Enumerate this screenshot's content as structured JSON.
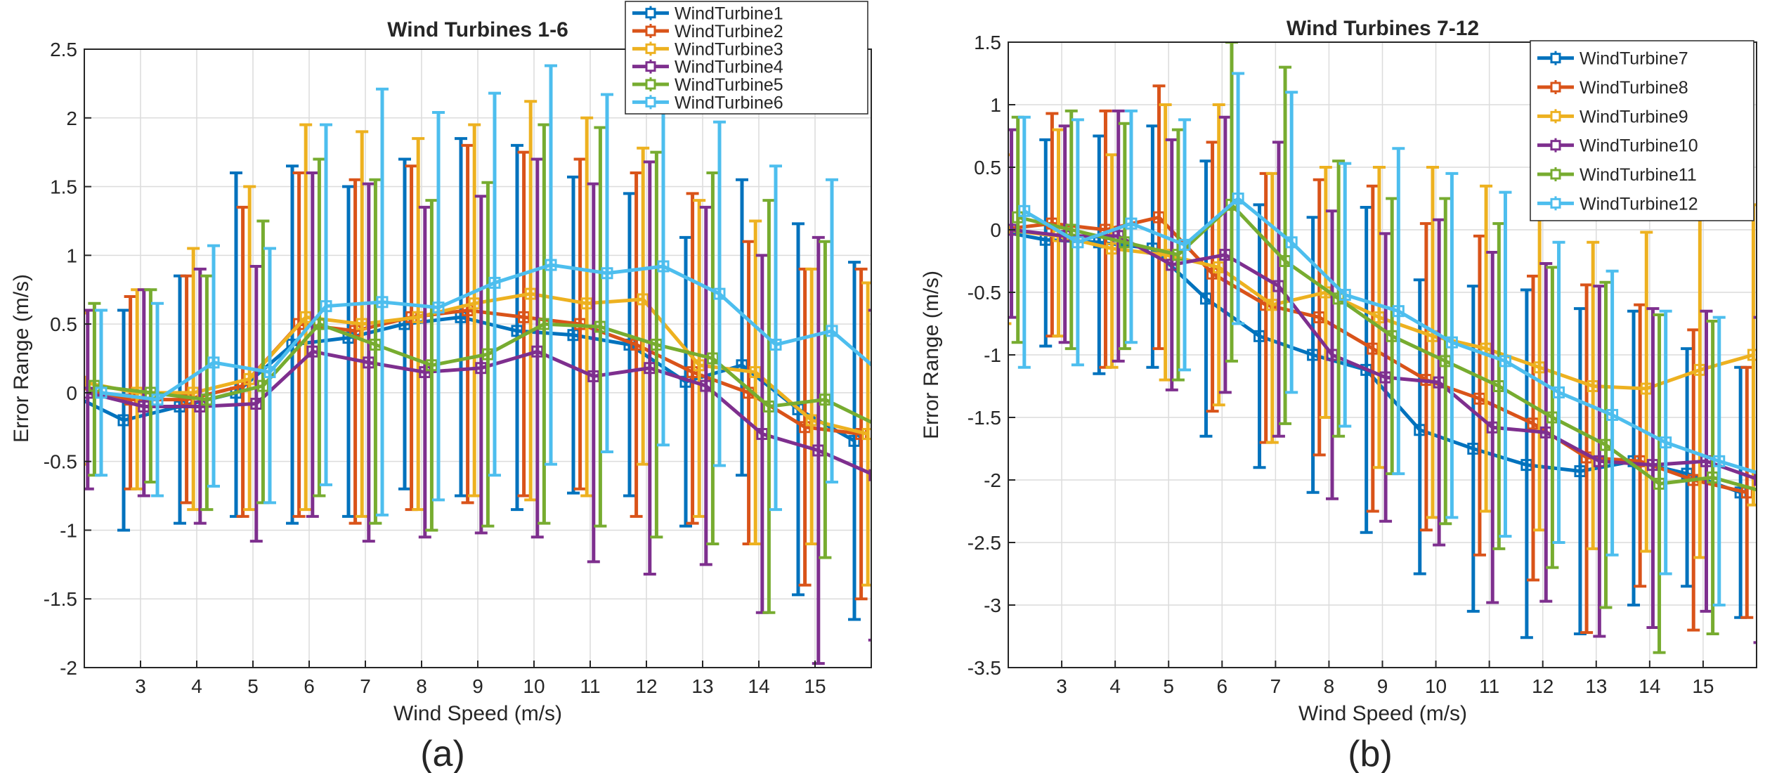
{
  "figure": {
    "colors": [
      "#0072BD",
      "#D95319",
      "#EDB120",
      "#7E2F8E",
      "#77AC30",
      "#4DBEEE"
    ]
  },
  "chart_data": [
    {
      "type": "line",
      "panel_label": "(a)",
      "title": "Wind Turbines 1-6",
      "xlabel": "Wind Speed (m/s)",
      "ylabel": "Error Range (m/s)",
      "xlim": [
        2,
        16
      ],
      "ylim": [
        -2,
        2.5
      ],
      "xticks": [
        3,
        4,
        5,
        6,
        7,
        8,
        9,
        10,
        11,
        12,
        13,
        14,
        15
      ],
      "yticks": [
        -2,
        -1.5,
        -1,
        -0.5,
        0,
        0.5,
        1,
        1.5,
        2,
        2.5
      ],
      "grid": true,
      "legend_position": "top-right",
      "x": [
        2,
        3,
        4,
        5,
        6,
        7,
        8,
        9,
        10,
        11,
        12,
        13,
        14,
        15,
        16
      ],
      "series": [
        {
          "name": "WindTurbine1",
          "offset": -0.3,
          "values": [
            0.0,
            -0.2,
            -0.1,
            0.0,
            0.35,
            0.4,
            0.5,
            0.55,
            0.45,
            0.42,
            0.35,
            0.08,
            0.2,
            -0.12,
            -0.35
          ],
          "err_low": [
            0.55,
            0.8,
            0.85,
            0.9,
            1.3,
            1.3,
            1.2,
            1.3,
            1.3,
            1.15,
            1.1,
            1.05,
            0.8,
            1.35,
            1.3
          ],
          "err_high": [
            0.45,
            0.8,
            0.95,
            1.6,
            1.3,
            1.1,
            1.2,
            1.3,
            1.35,
            1.15,
            1.1,
            1.05,
            1.35,
            1.35,
            1.3
          ]
        },
        {
          "name": "WindTurbine2",
          "offset": -0.18,
          "values": [
            0.05,
            -0.05,
            -0.05,
            0.05,
            0.5,
            0.45,
            0.55,
            0.6,
            0.55,
            0.5,
            0.35,
            0.15,
            0.0,
            -0.25,
            -0.3
          ],
          "err_low": [
            0.7,
            0.65,
            0.75,
            0.95,
            1.4,
            1.4,
            1.4,
            1.4,
            1.3,
            1.2,
            1.25,
            1.1,
            1.1,
            1.15,
            1.2
          ],
          "err_high": [
            0.5,
            0.75,
            0.9,
            1.3,
            1.1,
            1.1,
            1.1,
            1.2,
            1.2,
            1.2,
            1.25,
            1.3,
            1.1,
            1.15,
            1.2
          ]
        },
        {
          "name": "WindTurbine3",
          "offset": -0.06,
          "values": [
            0.08,
            0.0,
            0.0,
            0.1,
            0.55,
            0.5,
            0.55,
            0.65,
            0.72,
            0.65,
            0.68,
            0.2,
            0.15,
            -0.2,
            -0.3
          ],
          "err_low": [
            0.6,
            0.7,
            0.85,
            0.95,
            1.4,
            1.4,
            1.4,
            1.4,
            1.5,
            1.4,
            1.2,
            1.1,
            1.25,
            0.9,
            1.1
          ],
          "err_high": [
            0.5,
            0.75,
            1.05,
            1.4,
            1.4,
            1.4,
            1.3,
            1.3,
            1.4,
            1.35,
            1.1,
            1.2,
            1.1,
            1.1,
            1.1
          ]
        },
        {
          "name": "WindTurbine4",
          "offset": 0.06,
          "values": [
            0.0,
            -0.1,
            -0.1,
            -0.08,
            0.3,
            0.22,
            0.15,
            0.18,
            0.3,
            0.12,
            0.18,
            0.05,
            -0.3,
            -0.42,
            -0.6
          ],
          "err_low": [
            0.7,
            0.65,
            0.85,
            1.0,
            1.2,
            1.3,
            1.2,
            1.2,
            1.35,
            1.35,
            1.5,
            1.3,
            1.3,
            1.55,
            1.2
          ],
          "err_high": [
            0.6,
            0.85,
            1.0,
            1.0,
            1.3,
            1.3,
            1.2,
            1.25,
            1.4,
            1.4,
            1.5,
            1.3,
            1.3,
            1.55,
            1.2
          ]
        },
        {
          "name": "WindTurbine5",
          "offset": 0.18,
          "values": [
            0.05,
            0.0,
            -0.05,
            0.05,
            0.5,
            0.35,
            0.2,
            0.28,
            0.5,
            0.48,
            0.35,
            0.25,
            -0.1,
            -0.05,
            -0.25
          ],
          "err_low": [
            0.65,
            0.65,
            0.8,
            0.85,
            1.25,
            1.3,
            1.2,
            1.25,
            1.45,
            1.45,
            1.4,
            1.35,
            1.5,
            1.15,
            1.2
          ],
          "err_high": [
            0.6,
            0.75,
            0.9,
            1.2,
            1.2,
            1.2,
            1.2,
            1.25,
            1.45,
            1.45,
            1.4,
            1.35,
            1.5,
            1.15,
            1.2
          ]
        },
        {
          "name": "WindTurbine6",
          "offset": 0.3,
          "values": [
            0.0,
            -0.05,
            0.22,
            0.15,
            0.63,
            0.66,
            0.62,
            0.8,
            0.93,
            0.87,
            0.92,
            0.72,
            0.35,
            0.45,
            0.1
          ],
          "err_low": [
            0.6,
            0.7,
            0.9,
            0.95,
            1.3,
            1.55,
            1.4,
            1.4,
            1.45,
            1.3,
            1.3,
            1.25,
            1.2,
            1.1,
            1.1
          ],
          "err_high": [
            0.6,
            0.7,
            0.85,
            0.9,
            1.32,
            1.55,
            1.42,
            1.38,
            1.45,
            1.3,
            1.3,
            1.25,
            1.3,
            1.1,
            1.1
          ]
        }
      ]
    },
    {
      "type": "line",
      "panel_label": "(b)",
      "title": "Wind Turbines 7-12",
      "xlabel": "Wind Speed (m/s)",
      "ylabel": "Error Range (m/s)",
      "xlim": [
        2,
        16
      ],
      "ylim": [
        -3.5,
        1.5
      ],
      "xticks": [
        3,
        4,
        5,
        6,
        7,
        8,
        9,
        10,
        11,
        12,
        13,
        14,
        15
      ],
      "yticks": [
        -3.5,
        -3,
        -2.5,
        -2,
        -1.5,
        -1,
        -0.5,
        0,
        0.5,
        1,
        1.5
      ],
      "grid": true,
      "legend_position": "top-right",
      "x": [
        2,
        3,
        4,
        5,
        6,
        7,
        8,
        9,
        10,
        11,
        12,
        13,
        14,
        15,
        16
      ],
      "series": [
        {
          "name": "WindTurbine7",
          "offset": -0.3,
          "values": [
            0.0,
            -0.08,
            -0.1,
            -0.15,
            -0.55,
            -0.85,
            -1.0,
            -1.12,
            -1.6,
            -1.75,
            -1.88,
            -1.93,
            -1.85,
            -1.95,
            -2.1
          ],
          "err_low": [
            0.6,
            0.85,
            1.05,
            0.95,
            1.1,
            1.05,
            1.1,
            1.3,
            1.15,
            1.3,
            1.38,
            1.3,
            1.15,
            0.9,
            1.0
          ],
          "err_high": [
            0.65,
            0.8,
            0.85,
            0.98,
            1.1,
            1.05,
            1.1,
            1.3,
            1.2,
            1.3,
            1.4,
            1.3,
            1.2,
            1.0,
            1.0
          ]
        },
        {
          "name": "WindTurbine8",
          "offset": -0.18,
          "values": [
            0.0,
            0.05,
            0.0,
            0.1,
            -0.35,
            -0.6,
            -0.7,
            -0.95,
            -1.2,
            -1.35,
            -1.55,
            -1.82,
            -1.85,
            -2.0,
            -2.1
          ],
          "err_low": [
            0.85,
            0.9,
            1.1,
            1.05,
            1.1,
            1.1,
            1.1,
            1.3,
            1.2,
            1.25,
            1.25,
            1.4,
            1.0,
            1.2,
            1.0
          ],
          "err_high": [
            0.7,
            0.88,
            0.95,
            1.05,
            1.05,
            1.05,
            1.1,
            1.3,
            1.25,
            1.3,
            1.18,
            1.38,
            1.25,
            1.2,
            1.0
          ]
        },
        {
          "name": "WindTurbine9",
          "offset": -0.06,
          "values": [
            0.0,
            -0.05,
            -0.15,
            -0.2,
            -0.3,
            -0.6,
            -0.5,
            -0.7,
            -0.85,
            -0.95,
            -1.1,
            -1.25,
            -1.27,
            -1.12,
            -1.0
          ],
          "err_low": [
            0.75,
            0.8,
            0.95,
            1.0,
            1.1,
            1.1,
            1.0,
            1.2,
            1.45,
            1.3,
            1.3,
            1.3,
            1.3,
            1.5,
            1.2
          ],
          "err_high": [
            0.6,
            0.85,
            0.75,
            1.2,
            1.3,
            1.05,
            1.0,
            1.2,
            1.35,
            1.3,
            1.3,
            1.15,
            1.25,
            1.4,
            1.2
          ]
        },
        {
          "name": "WindTurbine10",
          "offset": 0.06,
          "values": [
            0.0,
            -0.05,
            -0.05,
            -0.28,
            -0.2,
            -0.45,
            -1.0,
            -1.18,
            -1.22,
            -1.58,
            -1.62,
            -1.85,
            -1.88,
            -1.85,
            -2.0
          ],
          "err_low": [
            0.7,
            0.85,
            1.0,
            1.0,
            1.1,
            1.2,
            1.15,
            1.15,
            1.3,
            1.4,
            1.35,
            1.4,
            1.3,
            1.2,
            1.3
          ],
          "err_high": [
            0.8,
            0.88,
            1.0,
            1.0,
            1.1,
            1.15,
            1.15,
            1.15,
            1.3,
            1.4,
            1.35,
            1.4,
            1.25,
            1.2,
            1.3
          ]
        },
        {
          "name": "WindTurbine11",
          "offset": 0.18,
          "values": [
            0.1,
            0.0,
            -0.1,
            -0.2,
            0.2,
            -0.25,
            -0.55,
            -0.85,
            -1.05,
            -1.25,
            -1.5,
            -1.72,
            -2.03,
            -1.98,
            -2.1
          ],
          "err_low": [
            1.0,
            0.95,
            0.85,
            1.0,
            1.25,
            1.3,
            1.1,
            1.1,
            1.3,
            1.3,
            1.2,
            1.3,
            1.35,
            1.25,
            1.2
          ],
          "err_high": [
            0.8,
            0.95,
            0.95,
            1.0,
            1.3,
            1.55,
            1.1,
            1.1,
            1.3,
            1.3,
            1.2,
            1.3,
            1.35,
            1.25,
            1.2
          ]
        },
        {
          "name": "WindTurbine12",
          "offset": 0.3,
          "values": [
            0.15,
            -0.1,
            0.05,
            -0.12,
            0.25,
            -0.1,
            -0.52,
            -0.65,
            -0.9,
            -1.05,
            -1.3,
            -1.48,
            -1.7,
            -1.85,
            -1.98
          ],
          "err_low": [
            1.25,
            0.98,
            0.95,
            1.0,
            1.0,
            1.2,
            1.05,
            1.3,
            1.4,
            1.4,
            1.2,
            1.12,
            1.05,
            1.15,
            1.15
          ],
          "err_high": [
            0.75,
            0.98,
            0.9,
            1.0,
            1.0,
            1.2,
            1.05,
            1.3,
            1.35,
            1.35,
            1.2,
            1.15,
            1.05,
            1.15,
            1.15
          ]
        }
      ]
    }
  ]
}
